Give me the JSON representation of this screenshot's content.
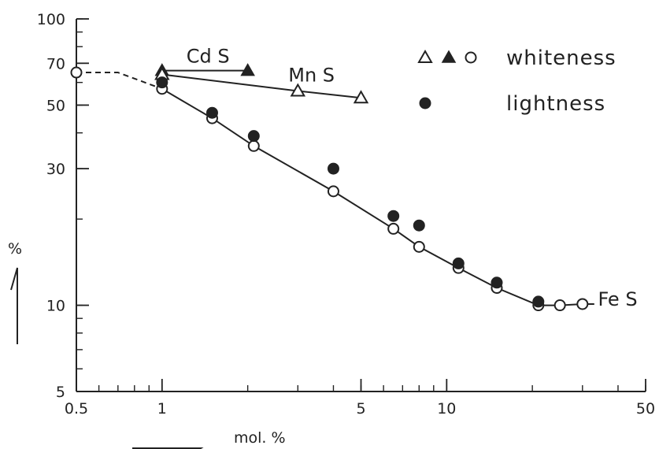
{
  "chart_data": {
    "type": "scatter",
    "x_scale": "log",
    "y_scale": "log",
    "xlim": [
      0.5,
      50
    ],
    "ylim": [
      5,
      100
    ],
    "xlabel": "mol. %",
    "ylabel": "%",
    "x_ticks": [
      {
        "value": 0.5,
        "label": "0.5"
      },
      {
        "value": 1,
        "label": "1"
      },
      {
        "value": 5,
        "label": "5"
      },
      {
        "value": 10,
        "label": "10"
      },
      {
        "value": 50,
        "label": "50"
      }
    ],
    "y_ticks": [
      {
        "value": 5,
        "label": "5"
      },
      {
        "value": 10,
        "label": "10"
      },
      {
        "value": 30,
        "label": "30"
      },
      {
        "value": 50,
        "label": "50"
      },
      {
        "value": 70,
        "label": "70"
      },
      {
        "value": 100,
        "label": "100"
      }
    ],
    "legend": {
      "placement": "top-right",
      "entries": [
        {
          "markers": [
            "open-triangle",
            "filled-triangle",
            "open-circle"
          ],
          "label": "whiteness"
        },
        {
          "markers": [
            "filled-circle"
          ],
          "label": "lightness"
        }
      ]
    },
    "series": [
      {
        "name": "CdS",
        "metric": "whiteness",
        "marker": "filled-triangle",
        "x": [
          1,
          2
        ],
        "y": [
          66,
          66
        ]
      },
      {
        "name": "MnS",
        "metric": "whiteness",
        "marker": "open-triangle",
        "x": [
          1,
          3,
          5
        ],
        "y": [
          64,
          56,
          53
        ]
      },
      {
        "name": "FeS",
        "metric": "whiteness",
        "marker": "open-circle",
        "x": [
          0.5,
          1,
          1.5,
          2.1,
          4,
          6.5,
          8,
          11,
          15,
          21,
          25,
          30
        ],
        "y": [
          65,
          57,
          45,
          36,
          25,
          18.5,
          16,
          13.5,
          11.5,
          10,
          10,
          10.1
        ]
      },
      {
        "name": "FeS",
        "metric": "lightness",
        "marker": "filled-circle",
        "x": [
          1,
          1.5,
          2.1,
          4,
          6.5,
          8,
          11,
          15,
          21
        ],
        "y": [
          60,
          47,
          39,
          30,
          20.5,
          19,
          14,
          12,
          10.3
        ]
      }
    ],
    "lines": [
      {
        "name": "CdS",
        "x": [
          1,
          2
        ],
        "y": [
          66,
          66
        ],
        "style": "solid"
      },
      {
        "name": "MnS",
        "x": [
          1,
          3,
          5
        ],
        "y": [
          64,
          56,
          53
        ],
        "style": "solid"
      },
      {
        "name": "FeS-dashed",
        "x": [
          0.5,
          0.7,
          1
        ],
        "y": [
          65,
          65,
          57
        ],
        "style": "dashed"
      },
      {
        "name": "FeS",
        "x": [
          1,
          1.5,
          2.1,
          4,
          6.5,
          8,
          11,
          15,
          21,
          25,
          30,
          33
        ],
        "y": [
          57,
          45,
          36,
          25,
          18.5,
          16,
          13.5,
          11.5,
          10,
          10,
          10.1,
          10.1
        ],
        "style": "solid"
      }
    ],
    "series_labels": [
      {
        "name": "CdS",
        "text": "Cd S"
      },
      {
        "name": "MnS",
        "text": "Mn S"
      },
      {
        "name": "FeS",
        "text": "Fe S"
      }
    ]
  }
}
